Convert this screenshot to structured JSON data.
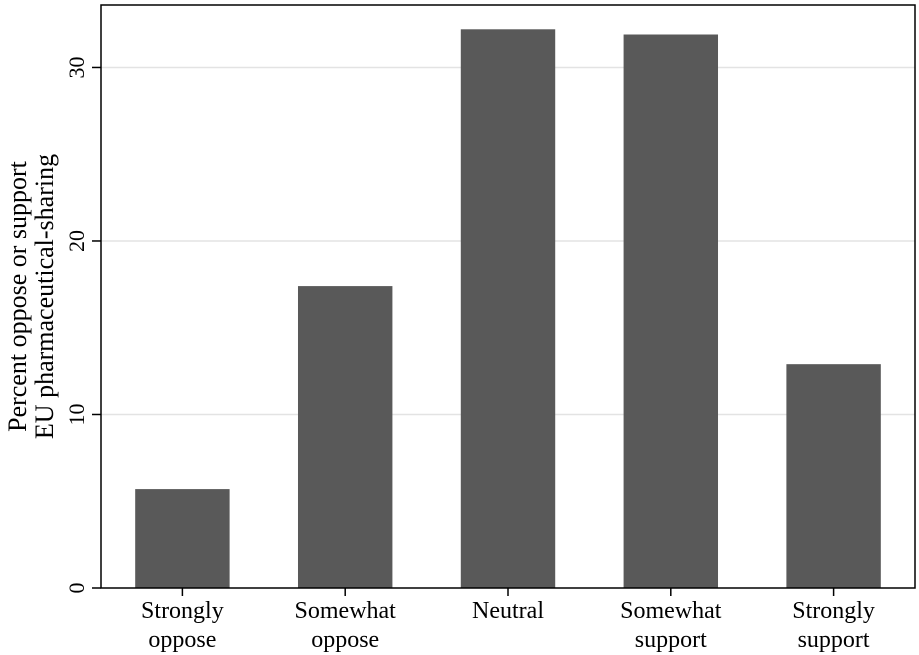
{
  "chart_data": {
    "type": "bar",
    "categories": [
      [
        "Strongly",
        "oppose"
      ],
      [
        "Somewhat",
        "oppose"
      ],
      [
        "Neutral"
      ],
      [
        "Somewhat",
        "support"
      ],
      [
        "Strongly",
        "support"
      ]
    ],
    "values": [
      5.7,
      17.4,
      32.2,
      31.9,
      12.9
    ],
    "ylabel": [
      "Percent oppose or support",
      "EU pharmaceutical-sharing"
    ],
    "ylim": [
      0,
      33.6
    ],
    "yticks": [
      0,
      10,
      20,
      30
    ],
    "grid": true,
    "bar_color": "#595959",
    "grid_color": "#e3e3e3",
    "axis_color": "#000000"
  }
}
